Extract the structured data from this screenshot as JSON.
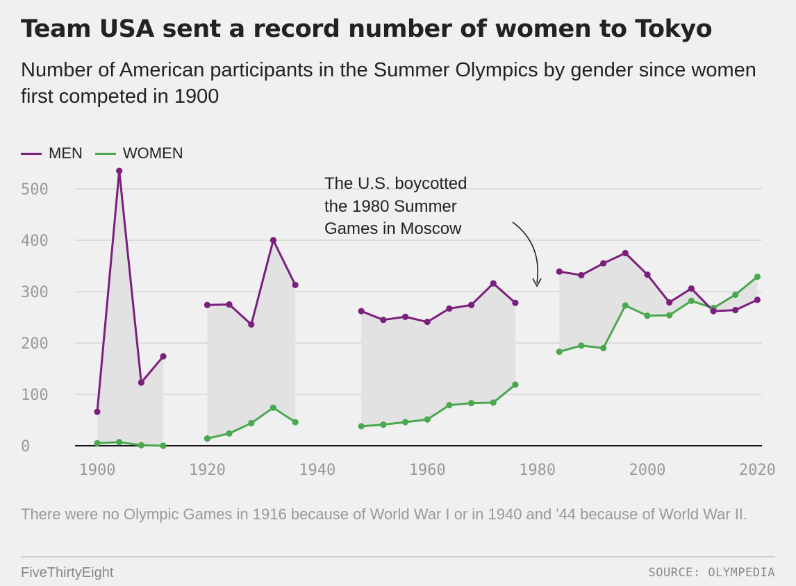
{
  "header": {
    "title": "Team USA sent a record number of women to Tokyo",
    "subtitle": "Number of American participants in the Summer Olympics by gender since women first competed in 1900"
  },
  "legend": [
    {
      "label": "MEN",
      "color": "#7b1f7c"
    },
    {
      "label": "WOMEN",
      "color": "#4aa84f"
    }
  ],
  "annotation": {
    "lines": [
      "The U.S. boycotted",
      "the 1980 Summer",
      "Games in Moscow"
    ]
  },
  "footer": {
    "note": "There were no Olympic Games in 1916 because of World War I or in 1940 and '44 because of World War II.",
    "brand": "FiveThirtyEight",
    "source": "SOURCE: OLYMPEDIA"
  },
  "chart_data": {
    "type": "line",
    "xlim": [
      1896,
      2024
    ],
    "ylim": [
      0,
      550
    ],
    "x_ticks": [
      "1900",
      "1920",
      "1940",
      "1960",
      "1980",
      "2000",
      "2020"
    ],
    "y_ticks": [
      "0",
      "100",
      "200",
      "300",
      "400",
      "500"
    ],
    "grid": true,
    "legend_position": "top-left",
    "shaded_gap_color": "#e2e2e2",
    "segments": [
      {
        "years": [
          1900,
          1904,
          1908,
          1912
        ],
        "men": [
          66,
          535,
          123,
          174
        ],
        "women": [
          5,
          7,
          1,
          0
        ]
      },
      {
        "years": [
          1920,
          1924,
          1928,
          1932,
          1936
        ],
        "men": [
          274,
          275,
          236,
          400,
          313
        ],
        "women": [
          14,
          24,
          44,
          74,
          46
        ]
      },
      {
        "years": [
          1948,
          1952,
          1956,
          1960,
          1964,
          1968,
          1972,
          1976
        ],
        "men": [
          262,
          245,
          251,
          241,
          267,
          274,
          316,
          278
        ],
        "women": [
          38,
          41,
          46,
          51,
          79,
          83,
          84,
          119
        ]
      },
      {
        "years": [
          1984,
          1988,
          1992,
          1996,
          2000,
          2004,
          2008,
          2012,
          2016,
          2020
        ],
        "men": [
          339,
          332,
          355,
          375,
          333,
          279,
          306,
          262,
          264,
          284
        ],
        "women": [
          183,
          195,
          190,
          273,
          253,
          254,
          282,
          268,
          294,
          329
        ]
      }
    ]
  }
}
